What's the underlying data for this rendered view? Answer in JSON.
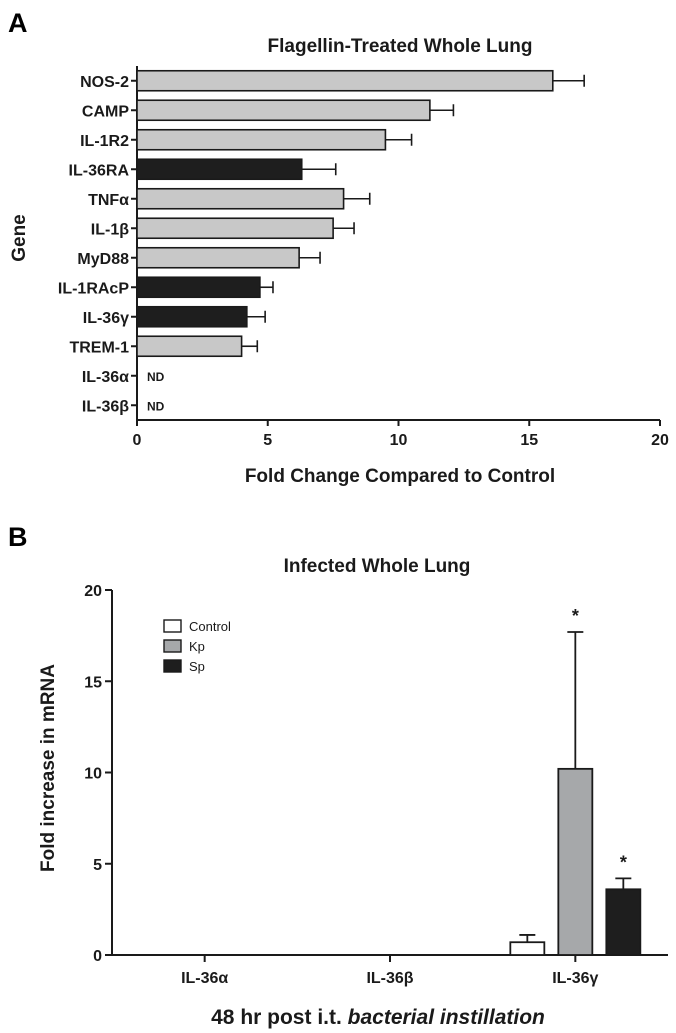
{
  "panels": {
    "a": {
      "letter": "A",
      "title": "Flagellin-Treated Whole Lung",
      "ylabel": "Gene",
      "xlabel": "Fold Change Compared to Control"
    },
    "b": {
      "letter": "B",
      "title": "Infected Whole Lung",
      "ylabel": "Fold increase in mRNA",
      "xlabel_prefix": "48 hr post i.t. ",
      "xlabel_italic": "bacterial instillation"
    }
  },
  "colors": {
    "gray": "#c8c8c8",
    "black": "#1e1e1e",
    "kp_gray": "#a6a8aa",
    "white": "#ffffff",
    "ink": "#1a1a1a"
  },
  "chart_data": [
    {
      "type": "bar",
      "orientation": "horizontal",
      "title": "Flagellin-Treated Whole Lung",
      "xlabel": "Fold Change Compared to Control",
      "ylabel": "Gene",
      "xlim": [
        0,
        20
      ],
      "xticks": [
        0,
        5,
        10,
        15,
        20
      ],
      "categories": [
        "NOS-2",
        "CAMP",
        "IL-1R2",
        "IL-36RA",
        "TNFα",
        "IL-1β",
        "MyD88",
        "IL-1RAcP",
        "IL-36γ",
        "TREM-1",
        "IL-36α",
        "IL-36β"
      ],
      "values": [
        15.9,
        11.2,
        9.5,
        6.3,
        7.9,
        7.5,
        6.2,
        4.7,
        4.2,
        4.0,
        null,
        null
      ],
      "errors": [
        1.2,
        0.9,
        1.0,
        1.3,
        1.0,
        0.8,
        0.8,
        0.5,
        0.7,
        0.6,
        null,
        null
      ],
      "fill": [
        "gray",
        "gray",
        "gray",
        "black",
        "gray",
        "gray",
        "gray",
        "black",
        "black",
        "gray",
        "gray",
        "gray"
      ],
      "annotations": [
        null,
        null,
        null,
        null,
        null,
        null,
        null,
        null,
        null,
        null,
        "ND",
        "ND"
      ],
      "grid": false,
      "legend": null
    },
    {
      "type": "bar",
      "title": "Infected Whole Lung",
      "ylabel": "Fold increase in mRNA",
      "xlabel": "48 hr post i.t. bacterial instillation",
      "ylim": [
        0,
        20
      ],
      "yticks": [
        0,
        5,
        10,
        15,
        20
      ],
      "categories": [
        "IL-36α",
        "IL-36β",
        "IL-36γ"
      ],
      "series": [
        {
          "name": "Control",
          "color": "white",
          "values": [
            0,
            0,
            0.7
          ],
          "errors": [
            0,
            0,
            0.4
          ],
          "significance": [
            null,
            null,
            null
          ]
        },
        {
          "name": "Kp",
          "color": "kp_gray",
          "values": [
            0,
            0,
            10.2
          ],
          "errors": [
            0,
            0,
            7.5
          ],
          "significance": [
            null,
            null,
            "*"
          ]
        },
        {
          "name": "Sp",
          "color": "black",
          "values": [
            0,
            0,
            3.6
          ],
          "errors": [
            0,
            0,
            0.6
          ],
          "significance": [
            null,
            null,
            "*"
          ]
        }
      ],
      "grid": false,
      "legend": "top-left"
    }
  ]
}
